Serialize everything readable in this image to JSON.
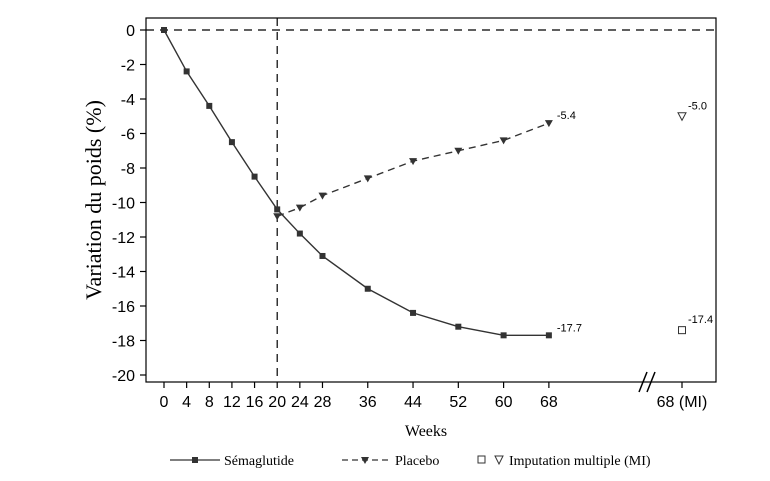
{
  "chart_data": {
    "type": "line",
    "title": "",
    "ylabel": "Variation du poids (%)",
    "xlabel": "Weeks",
    "ylim": [
      -20,
      0
    ],
    "yticks": [
      0,
      -2,
      -4,
      -6,
      -8,
      -10,
      -12,
      -14,
      -16,
      -18,
      -20
    ],
    "xticks": [
      "0",
      "4",
      "8",
      "12",
      "16",
      "20",
      "24",
      "28",
      "36",
      "44",
      "52",
      "60",
      "68",
      "68 (MI)"
    ],
    "grid": false,
    "axis_break": "between 68 and 68 (MI)",
    "reference_lines": [
      {
        "orientation": "horizontal",
        "y": 0,
        "style": "dashed"
      },
      {
        "orientation": "vertical",
        "x": 20,
        "style": "dashed"
      }
    ],
    "series": [
      {
        "name": "Sémaglutide",
        "marker": "filled-square",
        "line_style": "solid",
        "color": "#333333",
        "x": [
          0,
          4,
          8,
          12,
          16,
          20,
          24,
          28,
          36,
          44,
          52,
          60,
          68
        ],
        "y": [
          0,
          -2.4,
          -4.4,
          -6.5,
          -8.5,
          -10.4,
          -11.8,
          -13.1,
          -15.0,
          -16.4,
          -17.2,
          -17.7,
          -17.7
        ]
      },
      {
        "name": "Placebo",
        "marker": "filled-triangle-down",
        "line_style": "dashed",
        "color": "#333333",
        "x": [
          20,
          24,
          28,
          36,
          44,
          52,
          60,
          68
        ],
        "y": [
          -10.8,
          -10.3,
          -9.6,
          -8.6,
          -7.6,
          -7.0,
          -6.4,
          -5.4
        ]
      }
    ],
    "data_labels": [
      {
        "series": "Sémaglutide",
        "x": 68,
        "y": -17.7,
        "text": "-17.7"
      },
      {
        "series": "Placebo",
        "x": 68,
        "y": -5.4,
        "text": "-5.4"
      }
    ],
    "mi_points": [
      {
        "name": "Sémaglutide MI",
        "marker": "open-square",
        "x": "68 (MI)",
        "y": -17.4,
        "text": "-17.4"
      },
      {
        "name": "Placebo MI",
        "marker": "open-triangle-down",
        "x": "68 (MI)",
        "y": -5.0,
        "text": "-5.0"
      }
    ],
    "legend": {
      "placement": "bottom",
      "entries": [
        {
          "label": "Sémaglutide",
          "symbol": "solid-line-filled-square"
        },
        {
          "label": "Placebo",
          "symbol": "dashed-line-filled-triangle"
        },
        {
          "label": "Imputation multiple (MI)",
          "symbol": "open-square-open-triangle"
        }
      ]
    }
  }
}
